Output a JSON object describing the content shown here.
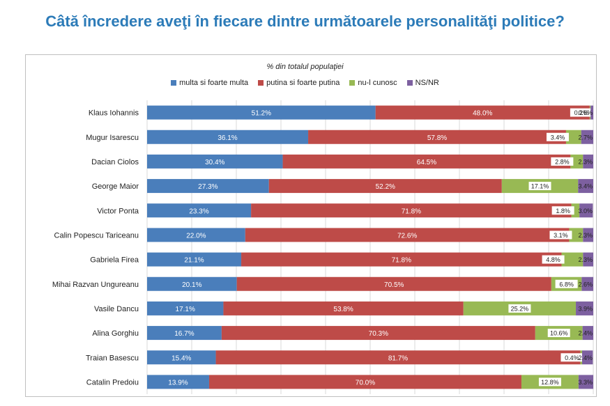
{
  "title": "Câtă încredere aveţi în fiecare dintre următoarele personalităţi politice?",
  "chart_data": {
    "type": "bar",
    "orientation": "horizontal",
    "stacked": true,
    "subtitle": "% din totalul populaţiei",
    "categories": [
      "Klaus Iohannis",
      "Mugur Isarescu",
      "Dacian Ciolos",
      "George Maior",
      "Victor Ponta",
      "Calin Popescu Tariceanu",
      "Gabriela Firea",
      "Mihai Razvan Ungureanu",
      "Vasile Dancu",
      "Alina Gorghiu",
      "Traian Basescu",
      "Catalin Predoiu"
    ],
    "series": [
      {
        "name": "multa si foarte multa",
        "color": "#4a7ebb",
        "values": [
          51.2,
          36.1,
          30.4,
          27.3,
          23.3,
          22.0,
          21.1,
          20.1,
          17.1,
          16.7,
          15.4,
          13.9
        ]
      },
      {
        "name": "putina si foarte putina",
        "color": "#be4b48",
        "values": [
          48.0,
          57.8,
          64.5,
          52.2,
          71.8,
          72.6,
          71.8,
          70.5,
          53.8,
          70.3,
          81.7,
          70.0
        ]
      },
      {
        "name": "nu-l cunosc",
        "color": "#98b954",
        "values": [
          0.2,
          3.4,
          2.8,
          17.1,
          1.8,
          3.1,
          4.8,
          6.8,
          25.2,
          10.6,
          0.4,
          12.8
        ]
      },
      {
        "name": "NS/NR",
        "color": "#7d60a0",
        "values": [
          0.6,
          2.7,
          2.3,
          3.4,
          3.0,
          2.3,
          2.3,
          2.6,
          3.9,
          2.4,
          2.4,
          3.3
        ]
      }
    ],
    "xlim": [
      0,
      100
    ],
    "grid": true,
    "legend_position": "top"
  }
}
